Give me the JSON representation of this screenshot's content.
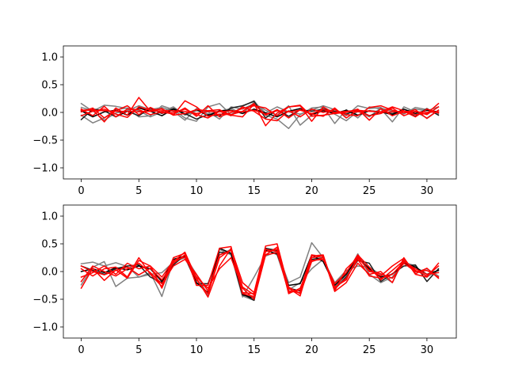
{
  "chart_data": [
    {
      "type": "line",
      "title": "",
      "xlabel": "",
      "ylabel": "",
      "xlim": [
        -1.55,
        32.55
      ],
      "ylim": [
        -1.2,
        1.2
      ],
      "xticks": [
        0,
        5,
        10,
        15,
        20,
        25,
        30
      ],
      "yticks": [
        -1.0,
        -0.5,
        0.0,
        0.5,
        1.0
      ],
      "xtick_labels": [
        "0",
        "5",
        "10",
        "15",
        "20",
        "25",
        "30"
      ],
      "ytick_labels": [
        "−1.0",
        "−0.5",
        "0.0",
        "0.5",
        "1.0"
      ],
      "grid": false,
      "x": [
        0,
        1,
        2,
        3,
        4,
        5,
        6,
        7,
        8,
        9,
        10,
        11,
        12,
        13,
        14,
        15,
        16,
        17,
        18,
        19,
        20,
        21,
        22,
        23,
        24,
        25,
        26,
        27,
        28,
        29,
        30,
        31
      ],
      "series": [
        {
          "color": "#808080",
          "values": [
            0.16,
            0.02,
            0.13,
            0.11,
            0.07,
            -0.08,
            -0.06,
            0.12,
            0.05,
            -0.1,
            -0.16,
            0.1,
            0.16,
            -0.04,
            0.11,
            0.21,
            -0.05,
            -0.12,
            -0.29,
            -0.04,
            0.08,
            0.1,
            -0.2,
            0.05,
            -0.1,
            0.1,
            0.06,
            -0.17,
            0.1,
            0.01,
            -0.1,
            0.04
          ]
        },
        {
          "color": "#808080",
          "values": [
            -0.05,
            -0.19,
            -0.1,
            0.05,
            0.08,
            0.03,
            -0.08,
            0.01,
            0.1,
            -0.05,
            0.03,
            0.01,
            -0.12,
            0.1,
            0.06,
            0.16,
            0.04,
            -0.05,
            0.12,
            -0.23,
            -0.05,
            0.09,
            -0.03,
            -0.15,
            0.02,
            -0.08,
            0.08,
            0.02,
            -0.03,
            0.09,
            0.05,
            -0.03
          ]
        },
        {
          "color": "#808080",
          "values": [
            0.09,
            0.03,
            -0.14,
            -0.01,
            0.03,
            0.12,
            0.05,
            0.09,
            0.02,
            -0.14,
            0.07,
            -0.03,
            0.02,
            0.07,
            -0.02,
            0.18,
            -0.01,
            0.1,
            0.01,
            -0.03,
            0.04,
            0.12,
            0.05,
            -0.06,
            0.12,
            0.07,
            0.09,
            -0.05,
            0.02,
            0.06,
            0.03,
            0.1
          ]
        },
        {
          "color": "#202020",
          "values": [
            -0.13,
            0.06,
            0.03,
            -0.08,
            0.02,
            -0.06,
            0.08,
            -0.02,
            0.07,
            -0.02,
            -0.12,
            -0.04,
            -0.06,
            0.08,
            0.12,
            0.2,
            -0.1,
            0.05,
            -0.07,
            0.05,
            0.02,
            0.06,
            0.02,
            -0.03,
            0.05,
            -0.06,
            0.01,
            -0.02,
            0.03,
            -0.07,
            0.07,
            -0.05
          ]
        },
        {
          "color": "#000000",
          "values": [
            0.03,
            -0.08,
            0.01,
            0.04,
            -0.05,
            0.08,
            0.02,
            -0.06,
            0.06,
            -0.03,
            0.05,
            -0.06,
            0.03,
            0.04,
            -0.02,
            0.06,
            -0.01,
            -0.08,
            0.02,
            0.07,
            -0.04,
            0.03,
            -0.02,
            0.04,
            -0.05,
            0.03,
            0.01,
            -0.04,
            0.06,
            -0.02,
            0.04,
            0.01
          ]
        },
        {
          "color": "#ff0000",
          "values": [
            0.04,
            0.05,
            -0.17,
            0.08,
            -0.05,
            0.27,
            0.02,
            0.07,
            -0.05,
            0.21,
            0.1,
            -0.07,
            -0.03,
            -0.04,
            0.02,
            0.16,
            -0.24,
            -0.01,
            0.1,
            0.13,
            -0.07,
            -0.05,
            -0.02,
            0.02,
            0.04,
            0.02,
            0.01,
            0.1,
            0.03,
            -0.04,
            -0.02,
            0.16
          ]
        },
        {
          "color": "#ff0000",
          "values": [
            0.06,
            -0.06,
            0.11,
            -0.08,
            0.06,
            0.05,
            -0.04,
            0.01,
            -0.03,
            0.08,
            -0.07,
            0.12,
            -0.08,
            0.0,
            0.07,
            0.12,
            0.08,
            -0.06,
            0.1,
            0.12,
            -0.16,
            0.1,
            -0.02,
            0.0,
            0.06,
            -0.14,
            0.07,
            -0.06,
            0.02,
            -0.08,
            0.06,
            -0.01
          ]
        },
        {
          "color": "#ff0000",
          "values": [
            0.01,
            0.08,
            -0.1,
            0.03,
            0.12,
            -0.04,
            0.09,
            -0.01,
            0.0,
            0.06,
            -0.04,
            -0.1,
            0.02,
            -0.06,
            0.1,
            0.02,
            -0.12,
            -0.15,
            0.03,
            -0.08,
            0.06,
            0.0,
            0.05,
            -0.04,
            -0.06,
            0.09,
            0.12,
            0.04,
            -0.01,
            0.05,
            -0.11,
            0.04
          ]
        },
        {
          "color": "#ff0000",
          "values": [
            -0.06,
            0.02,
            0.06,
            -0.03,
            -0.09,
            0.1,
            0.04,
            0.06,
            -0.05,
            -0.02,
            0.05,
            0.03,
            0.05,
            -0.05,
            -0.08,
            0.15,
            -0.05,
            0.05,
            -0.1,
            0.05,
            -0.03,
            -0.07,
            0.08,
            -0.1,
            0.04,
            -0.06,
            -0.02,
            0.08,
            -0.06,
            0.02,
            -0.04,
            0.1
          ]
        },
        {
          "color": "#ff0000",
          "values": [
            0.04,
            0.04,
            0.03,
            0.02,
            0.02,
            0.01,
            0.02,
            0.03,
            0.03,
            0.02,
            -0.02,
            0.02,
            0.01,
            0.03,
            0.01,
            0.04,
            -0.03,
            0.03,
            0.01,
            0.04,
            -0.02,
            0.05,
            0.0,
            0.02,
            0.01,
            0.03,
            0.0,
            0.01,
            0.02,
            0.01,
            0.0,
            0.01
          ]
        }
      ]
    },
    {
      "type": "line",
      "title": "",
      "xlabel": "",
      "ylabel": "",
      "xlim": [
        -1.55,
        32.55
      ],
      "ylim": [
        -1.2,
        1.2
      ],
      "xticks": [
        0,
        5,
        10,
        15,
        20,
        25,
        30
      ],
      "yticks": [
        -1.0,
        -0.5,
        0.0,
        0.5,
        1.0
      ],
      "xtick_labels": [
        "0",
        "5",
        "10",
        "15",
        "20",
        "25",
        "30"
      ],
      "ytick_labels": [
        "−1.0",
        "−0.5",
        "0.0",
        "0.5",
        "1.0"
      ],
      "grid": false,
      "x": [
        0,
        1,
        2,
        3,
        4,
        5,
        6,
        7,
        8,
        9,
        10,
        11,
        12,
        13,
        14,
        15,
        16,
        17,
        18,
        19,
        20,
        21,
        22,
        23,
        24,
        25,
        26,
        27,
        28,
        29,
        30,
        31
      ],
      "series": [
        {
          "color": "#808080",
          "values": [
            0.14,
            0.17,
            0.1,
            0.16,
            0.09,
            -0.1,
            -0.02,
            -0.45,
            0.2,
            0.28,
            -0.05,
            -0.44,
            0.4,
            0.3,
            -0.46,
            -0.1,
            0.28,
            0.36,
            -0.2,
            -0.1,
            0.52,
            0.25,
            -0.28,
            -0.08,
            0.32,
            -0.05,
            -0.2,
            -0.1,
            0.17,
            0.1,
            -0.1,
            0.03
          ]
        },
        {
          "color": "#808080",
          "values": [
            -0.24,
            0.08,
            0.18,
            -0.27,
            -0.12,
            -0.1,
            -0.05,
            -0.02,
            0.17,
            0.25,
            -0.2,
            -0.4,
            0.3,
            0.4,
            -0.44,
            -0.52,
            0.4,
            0.3,
            -0.33,
            -0.2,
            0.05,
            0.22,
            -0.2,
            0.02,
            0.1,
            0.08,
            -0.06,
            -0.2,
            0.22,
            -0.01,
            0.05,
            -0.08
          ]
        },
        {
          "color": "#202020",
          "values": [
            0.1,
            0.02,
            -0.05,
            0.05,
            0.1,
            0.12,
            -0.1,
            -0.2,
            0.12,
            0.3,
            -0.22,
            -0.22,
            0.35,
            0.33,
            -0.4,
            -0.52,
            0.42,
            0.38,
            -0.3,
            -0.35,
            0.22,
            0.25,
            -0.32,
            -0.1,
            0.2,
            0.15,
            -0.18,
            -0.04,
            0.1,
            0.12,
            -0.18,
            0.05
          ]
        },
        {
          "color": "#000000",
          "values": [
            0.0,
            0.05,
            -0.02,
            0.07,
            0.03,
            0.1,
            0.05,
            -0.18,
            0.22,
            0.28,
            -0.2,
            -0.38,
            0.42,
            0.33,
            -0.42,
            -0.48,
            0.38,
            0.32,
            -0.25,
            -0.22,
            0.3,
            0.18,
            -0.25,
            -0.05,
            0.25,
            0.05,
            -0.1,
            -0.05,
            0.15,
            0.08,
            -0.05,
            0.02
          ]
        },
        {
          "color": "#ff0000",
          "values": [
            -0.3,
            0.06,
            -0.16,
            0.03,
            -0.12,
            0.2,
            0.1,
            -0.3,
            0.18,
            0.35,
            -0.12,
            -0.46,
            0.1,
            0.42,
            -0.2,
            -0.38,
            0.46,
            0.5,
            -0.3,
            -0.44,
            0.28,
            0.3,
            -0.35,
            0.05,
            0.25,
            0.02,
            -0.08,
            0.1,
            0.24,
            -0.04,
            0.06,
            -0.12
          ]
        },
        {
          "color": "#ff0000",
          "values": [
            0.05,
            -0.08,
            0.05,
            0.08,
            -0.1,
            0.25,
            -0.05,
            -0.27,
            0.25,
            0.33,
            -0.25,
            -0.25,
            0.42,
            0.45,
            -0.38,
            -0.4,
            0.4,
            0.36,
            -0.38,
            -0.33,
            0.3,
            0.27,
            -0.36,
            -0.2,
            0.15,
            -0.05,
            0.0,
            -0.2,
            0.25,
            -0.05,
            -0.1,
            0.15
          ]
        },
        {
          "color": "#ff0000",
          "values": [
            -0.1,
            -0.02,
            0.1,
            -0.05,
            0.15,
            0.05,
            0.1,
            -0.1,
            0.2,
            0.26,
            -0.1,
            -0.3,
            0.05,
            0.25,
            -0.3,
            -0.5,
            0.3,
            0.44,
            -0.4,
            -0.3,
            0.2,
            0.22,
            -0.22,
            -0.02,
            0.3,
            0.08,
            -0.15,
            0.02,
            0.2,
            0.02,
            -0.08,
            0.1
          ]
        },
        {
          "color": "#ff0000",
          "values": [
            0.1,
            0.0,
            -0.06,
            0.02,
            0.08,
            -0.06,
            0.06,
            -0.15,
            0.15,
            0.3,
            -0.15,
            -0.4,
            0.25,
            0.4,
            -0.4,
            -0.45,
            0.36,
            0.4,
            -0.35,
            -0.38,
            0.25,
            0.28,
            -0.3,
            -0.12,
            0.22,
            -0.08,
            -0.12,
            -0.05,
            0.18,
            0.05,
            -0.05,
            -0.02
          ]
        },
        {
          "color": "#ff0000",
          "values": [
            -0.18,
            0.1,
            0.0,
            -0.08,
            0.05,
            0.15,
            -0.02,
            -0.22,
            0.1,
            0.22,
            -0.05,
            -0.35,
            0.3,
            0.38,
            -0.28,
            -0.42,
            0.3,
            0.34,
            -0.28,
            -0.4,
            0.18,
            0.25,
            -0.28,
            -0.15,
            0.28,
            0.0,
            -0.04,
            -0.12,
            0.15,
            0.0,
            0.02,
            -0.1
          ]
        }
      ]
    }
  ]
}
